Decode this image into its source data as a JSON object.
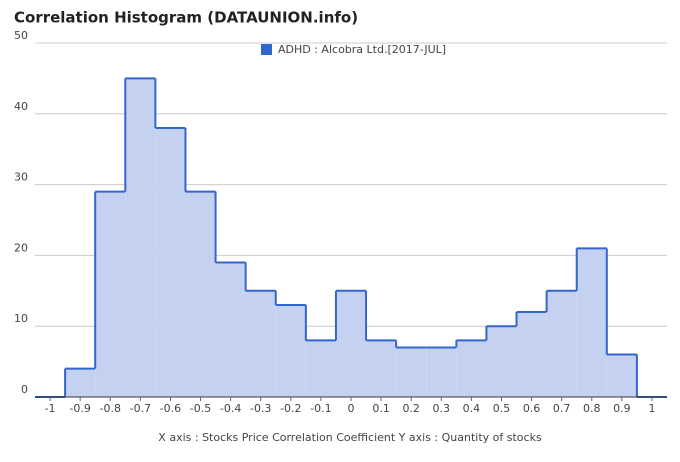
{
  "chart_data": {
    "type": "histogram",
    "title": "Correlation Histogram (DATAUNION.info)",
    "x_label": "X axis : Stocks Price Correlation Coefficient  Y axis : Quantity of stocks",
    "series": [
      {
        "name": "ADHD : Alcobra Ltd.[2017-JUL]",
        "color": "#3366cc",
        "fill": "#c5d1f0",
        "values": [
          0,
          4,
          29,
          45,
          38,
          29,
          19,
          15,
          13,
          8,
          15,
          8,
          7,
          7,
          8,
          10,
          12,
          15,
          21,
          6,
          0
        ]
      }
    ],
    "bins": [
      -1.05,
      -0.95,
      -0.85,
      -0.75,
      -0.65,
      -0.55,
      -0.45,
      -0.35,
      -0.25,
      -0.15,
      -0.05,
      0.05,
      0.15,
      0.25,
      0.35,
      0.45,
      0.55,
      0.65,
      0.75,
      0.85,
      0.95,
      1.05
    ],
    "xlim": [
      -1.05,
      1.05
    ],
    "xticks": [
      -1,
      -0.9,
      -0.8,
      -0.7,
      -0.6,
      -0.5,
      -0.4,
      -0.3,
      -0.2,
      -0.1,
      0,
      0.1,
      0.2,
      0.3,
      0.4,
      0.5,
      0.6,
      0.7,
      0.8,
      0.9,
      1
    ],
    "ylim": [
      0,
      50
    ],
    "yticks": [
      0,
      10,
      20,
      30,
      40,
      50
    ],
    "grid": true,
    "legend": "top"
  }
}
